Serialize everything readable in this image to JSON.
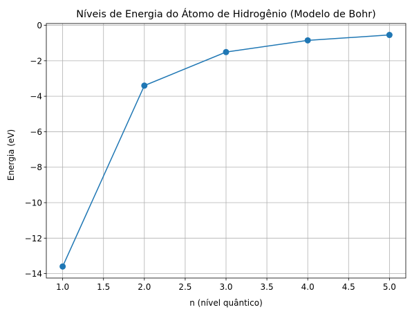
{
  "chart_data": {
    "type": "line",
    "title": "Níveis de Energia do Átomo de Hidrogênio (Modelo de Bohr)",
    "xlabel": "n (nível quântico)",
    "ylabel": "Energia (eV)",
    "x": [
      1,
      2,
      3,
      4,
      5
    ],
    "series": [
      {
        "values": [
          -13.6,
          -3.4,
          -1.51,
          -0.85,
          -0.544
        ]
      }
    ],
    "xlim": [
      0.8,
      5.2
    ],
    "ylim": [
      -14.25,
      0.1
    ],
    "x_ticks": [
      "1.0",
      "1.5",
      "2.0",
      "2.5",
      "3.0",
      "3.5",
      "4.0",
      "4.5",
      "5.0"
    ],
    "y_ticks": [
      "−14",
      "−12",
      "−10",
      "−8",
      "−6",
      "−4",
      "−2",
      "0"
    ],
    "grid": true,
    "markers": true,
    "line_color": "#1f77b4",
    "grid_color": "#b0b0b0"
  }
}
